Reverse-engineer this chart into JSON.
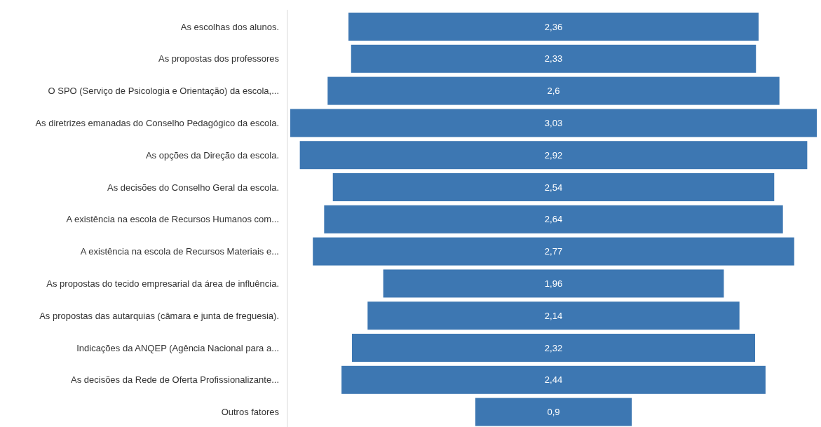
{
  "chart_data": {
    "type": "other",
    "data_labels": true,
    "color": "#3d77b2",
    "categories": [
      "As escolhas dos alunos.",
      "As propostas dos professores",
      "O SPO (Serviço de Psicologia e Orientação) da escola,...",
      "As diretrizes emanadas do Conselho Pedagógico da escola.",
      "As opções da Direção da escola.",
      "As decisões do Conselho Geral da escola.",
      "A existência na escola de Recursos Humanos com...",
      "A existência na escola de Recursos Materiais e...",
      "As propostas do tecido empresarial da área de influência.",
      "As propostas das autarquias (câmara e junta de freguesia).",
      "Indicações da ANQEP (Agência Nacional para a...",
      "As decisões da Rede de Oferta Profissionalizante...",
      "Outros fatores"
    ],
    "values": [
      2.36,
      2.33,
      2.6,
      3.03,
      2.92,
      2.54,
      2.64,
      2.77,
      1.96,
      2.14,
      2.32,
      2.44,
      0.9
    ],
    "value_labels": [
      "2,36",
      "2,33",
      "2,6",
      "3,03",
      "2,92",
      "2,54",
      "2,64",
      "2,77",
      "1,96",
      "2,14",
      "2,32",
      "2,44",
      "0,9"
    ]
  }
}
